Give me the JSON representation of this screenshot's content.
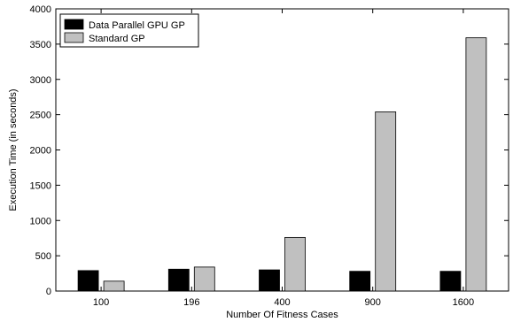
{
  "chart_data": {
    "type": "bar",
    "title": "",
    "xlabel": "Number Of Fitness Cases",
    "ylabel": "Execution Time (in seconds)",
    "categories": [
      "100",
      "196",
      "400",
      "900",
      "1600"
    ],
    "ylim": [
      0,
      4000
    ],
    "yticks": [
      0,
      500,
      1000,
      1500,
      2000,
      2500,
      3000,
      3500,
      4000
    ],
    "grid": false,
    "legend_position": "top-left",
    "series": [
      {
        "name": "Data Parallel GPU GP",
        "color": "#000000",
        "values": [
          290,
          310,
          300,
          280,
          280
        ]
      },
      {
        "name": "Standard GP",
        "color": "#c0c0c0",
        "values": [
          140,
          340,
          760,
          2540,
          3590
        ]
      }
    ]
  }
}
